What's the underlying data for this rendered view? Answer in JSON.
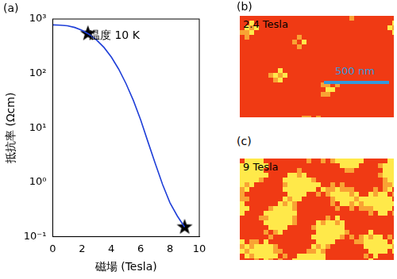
{
  "chart_data": {
    "type": "line",
    "panel_label": "(a)",
    "annotation": "温度 10 K",
    "x_label": "磁場 (Tesla)",
    "y_label": "抵抗率 (Ωcm)",
    "log": "y",
    "grid": false,
    "xlim": [
      0,
      10
    ],
    "xticks": [
      0,
      2,
      4,
      6,
      8,
      10
    ],
    "ylim": [
      0.1,
      1000
    ],
    "yticks": [
      {
        "value": 0.1,
        "label": "10⁻¹"
      },
      {
        "value": 1,
        "label": "10⁰"
      },
      {
        "value": 10,
        "label": "10¹"
      },
      {
        "value": 100,
        "label": "10²"
      },
      {
        "value": 1000,
        "label": "10³"
      }
    ],
    "series": [
      {
        "type": "line",
        "color": "#1f3fd8",
        "x": [
          0,
          0.5,
          1,
          1.5,
          2,
          2.5,
          3,
          3.5,
          4,
          4.5,
          5,
          5.5,
          6,
          6.5,
          7,
          7.5,
          8,
          8.5,
          9
        ],
        "values": [
          780,
          770,
          750,
          700,
          620,
          520,
          410,
          300,
          200,
          120,
          65,
          32,
          14,
          5.5,
          2.2,
          0.9,
          0.42,
          0.24,
          0.15
        ]
      },
      {
        "type": "scatter",
        "marker": "star",
        "color": "#000000",
        "x": [
          2.4,
          9
        ],
        "values": [
          540,
          0.15
        ]
      }
    ]
  },
  "images": [
    {
      "panel_label": "(b)",
      "text": "2.4 Tesla",
      "scale_bar": "500 nm",
      "colors": [
        "#f03a14",
        "#ffe94a"
      ]
    },
    {
      "panel_label": "(c)",
      "text": "9 Tesla",
      "colors": [
        "#f03a14",
        "#ffe94a"
      ]
    }
  ]
}
